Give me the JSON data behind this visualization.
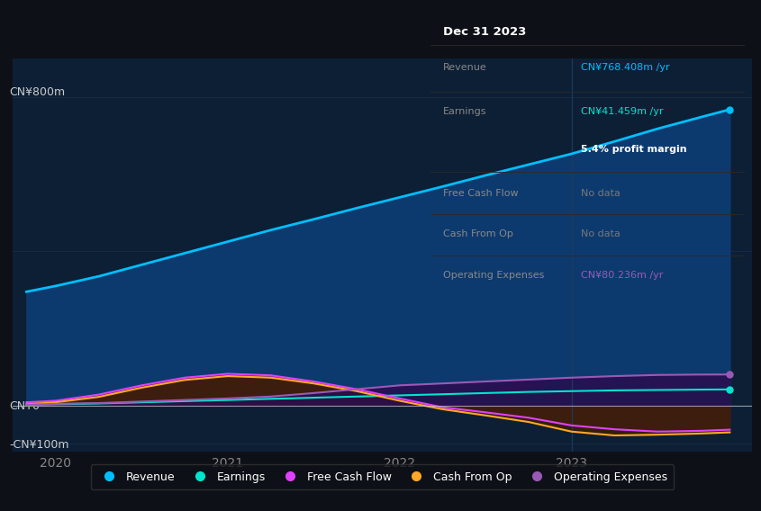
{
  "bg_color": "#0d1117",
  "plot_bg_color": "#0d1f35",
  "ylabel_top": "CN¥800m",
  "ylabel_zero": "CN¥0",
  "ylabel_neg": "-CN¥100m",
  "ylim": [
    -120,
    900
  ],
  "xlim": [
    2019.75,
    2024.05
  ],
  "xticks": [
    2020,
    2021,
    2022,
    2023
  ],
  "x": [
    2019.83,
    2020.0,
    2020.25,
    2020.5,
    2020.75,
    2021.0,
    2021.25,
    2021.5,
    2021.75,
    2022.0,
    2022.25,
    2022.5,
    2022.75,
    2023.0,
    2023.25,
    2023.5,
    2023.75,
    2023.92
  ],
  "revenue": [
    295,
    310,
    335,
    365,
    395,
    425,
    455,
    483,
    512,
    540,
    568,
    597,
    625,
    653,
    685,
    718,
    748,
    768
  ],
  "earnings": [
    2,
    3,
    5,
    8,
    11,
    14,
    17,
    20,
    23,
    26,
    29,
    32,
    35,
    37,
    39,
    40,
    41,
    41.5
  ],
  "free_cash_flow": [
    8,
    12,
    28,
    52,
    72,
    82,
    78,
    62,
    42,
    18,
    -5,
    -18,
    -32,
    -52,
    -62,
    -68,
    -66,
    -63
  ],
  "cash_from_op": [
    3,
    8,
    22,
    46,
    66,
    76,
    72,
    57,
    37,
    12,
    -10,
    -26,
    -43,
    -68,
    -78,
    -76,
    -73,
    -70
  ],
  "operating_expenses": [
    2,
    4,
    6,
    10,
    14,
    18,
    23,
    32,
    42,
    52,
    57,
    62,
    67,
    72,
    76,
    79,
    80,
    80.2
  ],
  "revenue_color": "#00bfff",
  "revenue_fill": "#0d3a6e",
  "earnings_color": "#00e5cc",
  "earnings_fill": "#003840",
  "free_cash_flow_color": "#e040fb",
  "free_cash_flow_fill": "#5a1060",
  "cash_from_op_color": "#ffa726",
  "cash_from_op_fill": "#3a2000",
  "op_expenses_color": "#9b59b6",
  "op_expenses_fill": "#2a0d50",
  "zero_line_color": "#cccccc",
  "grid_color": "#1e3a5a",
  "legend_bg": "#0d1117",
  "legend_items": [
    "Revenue",
    "Earnings",
    "Free Cash Flow",
    "Cash From Op",
    "Operating Expenses"
  ],
  "legend_colors": [
    "#00bfff",
    "#00e5cc",
    "#e040fb",
    "#ffa726",
    "#9b59b6"
  ],
  "info_title": "Dec 31 2023",
  "info_rows": [
    {
      "label": "Revenue",
      "value": "CN¥768.408m /yr",
      "color": "#00bfff",
      "nodata": false
    },
    {
      "label": "Earnings",
      "value": "CN¥41.459m /yr",
      "color": "#00e5cc",
      "nodata": false
    },
    {
      "label": "",
      "value": "5.4% profit margin",
      "color": "#ffffff",
      "nodata": false,
      "bold": true
    },
    {
      "label": "Free Cash Flow",
      "value": "No data",
      "color": "#777777",
      "nodata": true
    },
    {
      "label": "Cash From Op",
      "value": "No data",
      "color": "#777777",
      "nodata": true
    },
    {
      "label": "Operating Expenses",
      "value": "CN¥80.236m /yr",
      "color": "#9b59b6",
      "nodata": false
    }
  ]
}
